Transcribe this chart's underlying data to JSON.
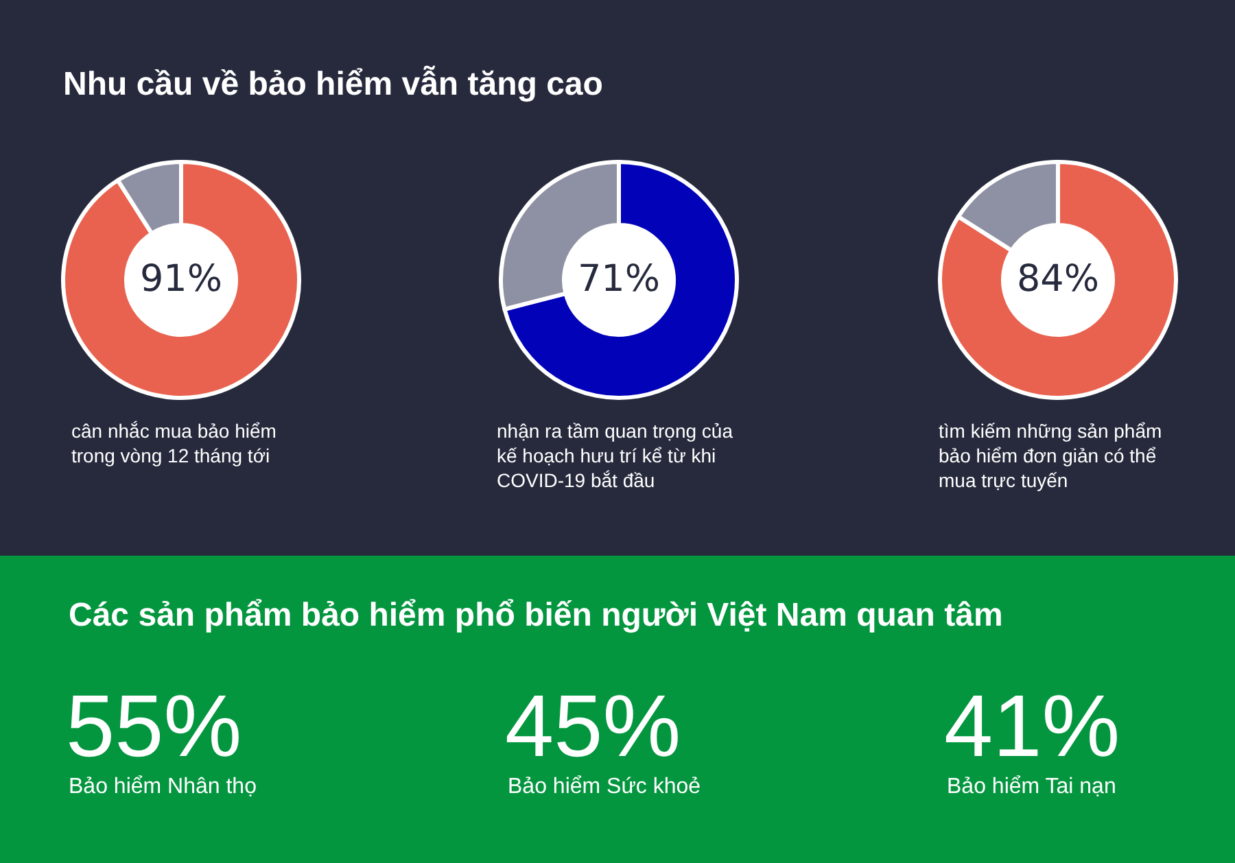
{
  "chart_data": [
    {
      "type": "donut",
      "title": "Nhu cầu về bảo hiểm vẫn tăng cao",
      "categories": [
        null,
        null
      ],
      "values": [
        91,
        9
      ],
      "colors": [
        "#e8624f",
        "#8e91a3"
      ],
      "annotations": [
        "91%",
        "cân nhắc mua bảo hiểm trong vòng 12 tháng tới"
      ]
    },
    {
      "type": "donut",
      "categories": [
        null,
        null
      ],
      "values": [
        71,
        29
      ],
      "colors": [
        "#0202b8",
        "#8e91a3"
      ],
      "annotations": [
        "71%",
        "nhận ra tầm quan trọng của kế hoạch hưu trí kể từ khi COVID-19 bắt đầu"
      ]
    },
    {
      "type": "donut",
      "categories": [
        null,
        null
      ],
      "values": [
        84,
        16
      ],
      "colors": [
        "#e8624f",
        "#8e91a3"
      ],
      "annotations": [
        "84%",
        "tìm kiếm những sản phẩm bảo hiểm đơn giản có thể mua trực tuyến"
      ]
    },
    {
      "type": "other",
      "title": "Các sản phẩm bảo hiểm phổ biến người Việt Nam quan tâm",
      "categories": [
        "Bảo hiểm Nhân thọ",
        "Bảo hiểm Sức khoẻ",
        "Bảo hiểm Tai nạn"
      ],
      "values": [
        55,
        45,
        41
      ],
      "value_labels": [
        "55%",
        "45%",
        "41%"
      ]
    }
  ]
}
